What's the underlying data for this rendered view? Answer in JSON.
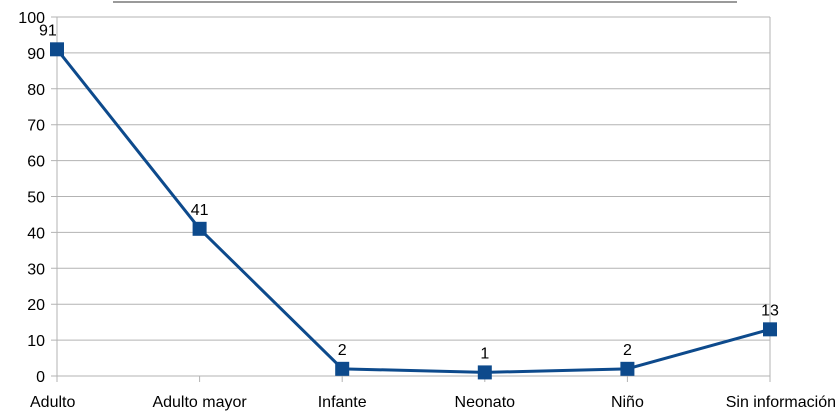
{
  "chart_data": {
    "type": "line",
    "categories": [
      "Adulto",
      "Adulto mayor",
      "Infante",
      "Neonato",
      "Niño",
      "Sin información"
    ],
    "series": [
      {
        "values": [
          91,
          41,
          2,
          1,
          2,
          13
        ]
      }
    ],
    "data_labels": [
      "91",
      "41",
      "2",
      "1",
      "2",
      "13"
    ],
    "y_ticks": [
      "0",
      "10",
      "20",
      "30",
      "40",
      "50",
      "60",
      "70",
      "80",
      "90",
      "100"
    ],
    "ylim": [
      0,
      100
    ],
    "grid": true,
    "legend": "none",
    "title": "",
    "xlabel": "",
    "ylabel": "",
    "colors": {
      "line": "#0d4a8c",
      "grid": "#b3b3b3",
      "axis": "#b3b3b3"
    }
  }
}
